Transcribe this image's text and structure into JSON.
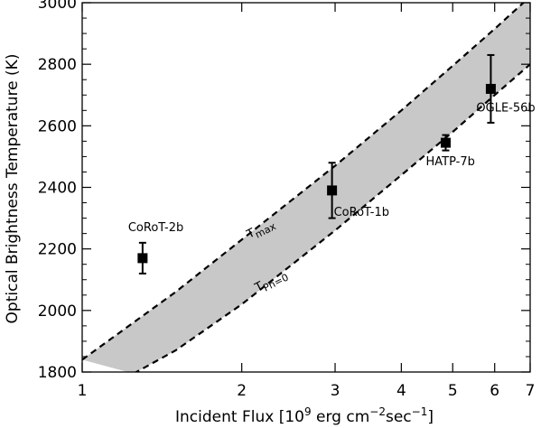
{
  "chart_data": {
    "type": "scatter",
    "title": "",
    "xlabel_main": "Incident Flux [10",
    "xlabel_exp1": "9",
    "xlabel_mid1": " erg cm",
    "xlabel_exp2": "−2",
    "xlabel_mid2": "sec",
    "xlabel_exp3": "−1",
    "xlabel_end": "]",
    "ylabel": "Optical Brightness Temperature (K)",
    "x_scale": "log",
    "xlim": [
      1,
      7
    ],
    "ylim": [
      1800,
      3000
    ],
    "x_ticks": [
      1,
      2,
      3,
      4,
      5,
      6,
      7
    ],
    "x_tick_labels": [
      "1",
      "2",
      "3",
      "4",
      "5",
      "6",
      "7"
    ],
    "y_ticks": [
      1800,
      2000,
      2200,
      2400,
      2600,
      2800,
      3000
    ],
    "y_tick_labels": [
      "1800",
      "2000",
      "2200",
      "2400",
      "2600",
      "2800",
      "3000"
    ],
    "points": [
      {
        "name": "CoRoT-2b",
        "x": 1.3,
        "y": 2170,
        "yerr": 50
      },
      {
        "name": "CoRoT-1b",
        "x": 2.96,
        "y": 2390,
        "yerr": 90
      },
      {
        "name": "HATP-7b",
        "x": 4.85,
        "y": 2545,
        "yerr": 25
      },
      {
        "name": "OGLE-56b",
        "x": 5.9,
        "y": 2720,
        "yerr": 110
      }
    ],
    "band": {
      "upper_name": "T",
      "upper_sub": "max",
      "lower_name": "T",
      "lower_sub": "Pn=0",
      "upper": {
        "x": [
          1,
          1.5,
          2,
          3,
          4,
          5,
          6,
          7
        ],
        "y": [
          1840,
          2060,
          2230,
          2470,
          2650,
          2795,
          2915,
          3020
        ]
      },
      "lower": {
        "x": [
          1.25,
          1.5,
          2,
          3,
          4,
          5,
          6,
          7
        ],
        "y": [
          1795,
          1870,
          2020,
          2260,
          2440,
          2580,
          2700,
          2800
        ]
      },
      "fill_color": "#c8c8c8"
    },
    "grid": false,
    "legend": "none"
  }
}
